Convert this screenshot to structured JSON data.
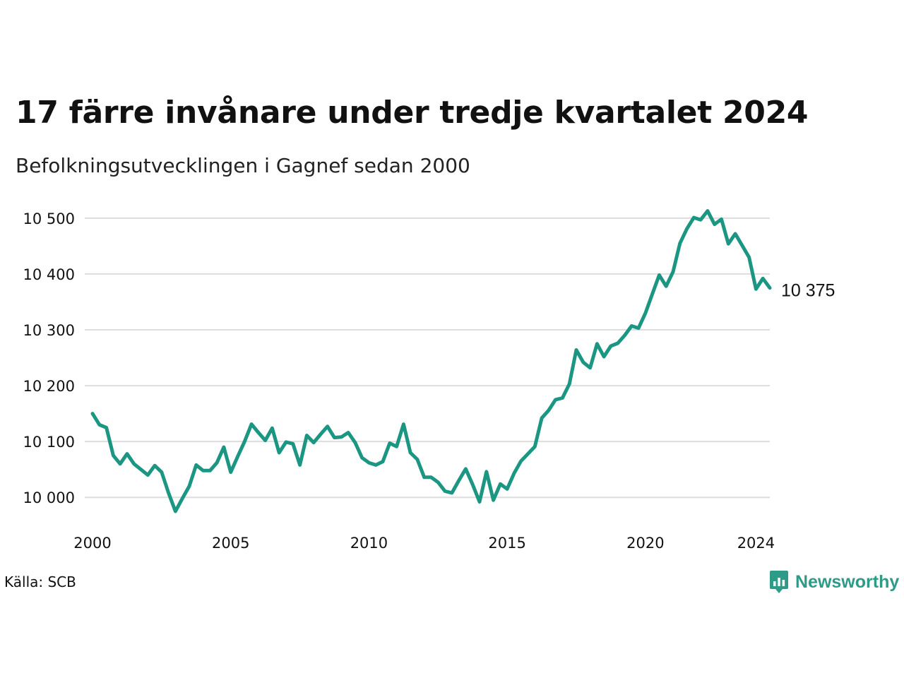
{
  "title": "17 färre invånare under tredje kvartalet 2024",
  "subtitle": "Befolkningsutvecklingen i Gagnef sedan 2000",
  "source": "Källa: SCB",
  "brand": {
    "name": "Newsworthy",
    "color": "#2e9a88",
    "icon": "bar-chart-pin-icon"
  },
  "chart_data": {
    "type": "line",
    "line_color": "#1a9683",
    "grid": true,
    "ylim": [
      9975,
      10515
    ],
    "xlim": [
      2000.0,
      2024.5
    ],
    "y_ticks": [
      10000,
      10100,
      10200,
      10300,
      10400,
      10500
    ],
    "y_tick_labels": [
      "10 000",
      "10 100",
      "10 200",
      "10 300",
      "10 400",
      "10 500"
    ],
    "x_ticks": [
      2000,
      2005,
      2010,
      2015,
      2020,
      2024
    ],
    "x_tick_labels": [
      "2000",
      "2005",
      "2010",
      "2015",
      "2020",
      "2024"
    ],
    "end_label": "10 375",
    "series": [
      {
        "x": [
          2000.0,
          2000.25,
          2000.5,
          2000.75,
          2001.0,
          2001.25,
          2001.5,
          2001.75,
          2002.0,
          2002.25,
          2002.5,
          2002.75,
          2003.0,
          2003.25,
          2003.5,
          2003.75,
          2004.0,
          2004.25,
          2004.5,
          2004.75,
          2005.0,
          2005.25,
          2005.5,
          2005.75,
          2006.0,
          2006.25,
          2006.5,
          2006.75,
          2007.0,
          2007.25,
          2007.5,
          2007.75,
          2008.0,
          2008.25,
          2008.5,
          2008.75,
          2009.0,
          2009.25,
          2009.5,
          2009.75,
          2010.0,
          2010.25,
          2010.5,
          2010.75,
          2011.0,
          2011.25,
          2011.5,
          2011.75,
          2012.0,
          2012.25,
          2012.5,
          2012.75,
          2013.0,
          2013.25,
          2013.5,
          2013.75,
          2014.0,
          2014.25,
          2014.5,
          2014.75,
          2015.0,
          2015.25,
          2015.5,
          2015.75,
          2016.0,
          2016.25,
          2016.5,
          2016.75,
          2017.0,
          2017.25,
          2017.5,
          2017.75,
          2018.0,
          2018.25,
          2018.5,
          2018.75,
          2019.0,
          2019.25,
          2019.5,
          2019.75,
          2020.0,
          2020.25,
          2020.5,
          2020.75,
          2021.0,
          2021.25,
          2021.5,
          2021.75,
          2022.0,
          2022.25,
          2022.5,
          2022.75,
          2023.0,
          2023.25,
          2023.5,
          2023.75,
          2024.0,
          2024.25,
          2024.5
        ],
        "y": [
          10150,
          10130,
          10125,
          10075,
          10060,
          10078,
          10060,
          10050,
          10040,
          10057,
          10045,
          10008,
          9975,
          9998,
          10020,
          10058,
          10048,
          10048,
          10062,
          10090,
          10045,
          10073,
          10100,
          10131,
          10116,
          10102,
          10124,
          10080,
          10099,
          10096,
          10058,
          10111,
          10098,
          10113,
          10127,
          10107,
          10108,
          10116,
          10098,
          10071,
          10062,
          10058,
          10064,
          10097,
          10091,
          10131,
          10080,
          10068,
          10036,
          10036,
          10027,
          10011,
          10008,
          10030,
          10051,
          10023,
          9992,
          10046,
          9995,
          10024,
          10015,
          10043,
          10065,
          10078,
          10091,
          10142,
          10156,
          10175,
          10178,
          10203,
          10264,
          10242,
          10232,
          10275,
          10252,
          10271,
          10276,
          10290,
          10307,
          10303,
          10330,
          10364,
          10398,
          10378,
          10404,
          10455,
          10481,
          10501,
          10497,
          10513,
          10489,
          10498,
          10454,
          10472,
          10451,
          10430,
          10373,
          10392,
          10375
        ]
      }
    ]
  }
}
